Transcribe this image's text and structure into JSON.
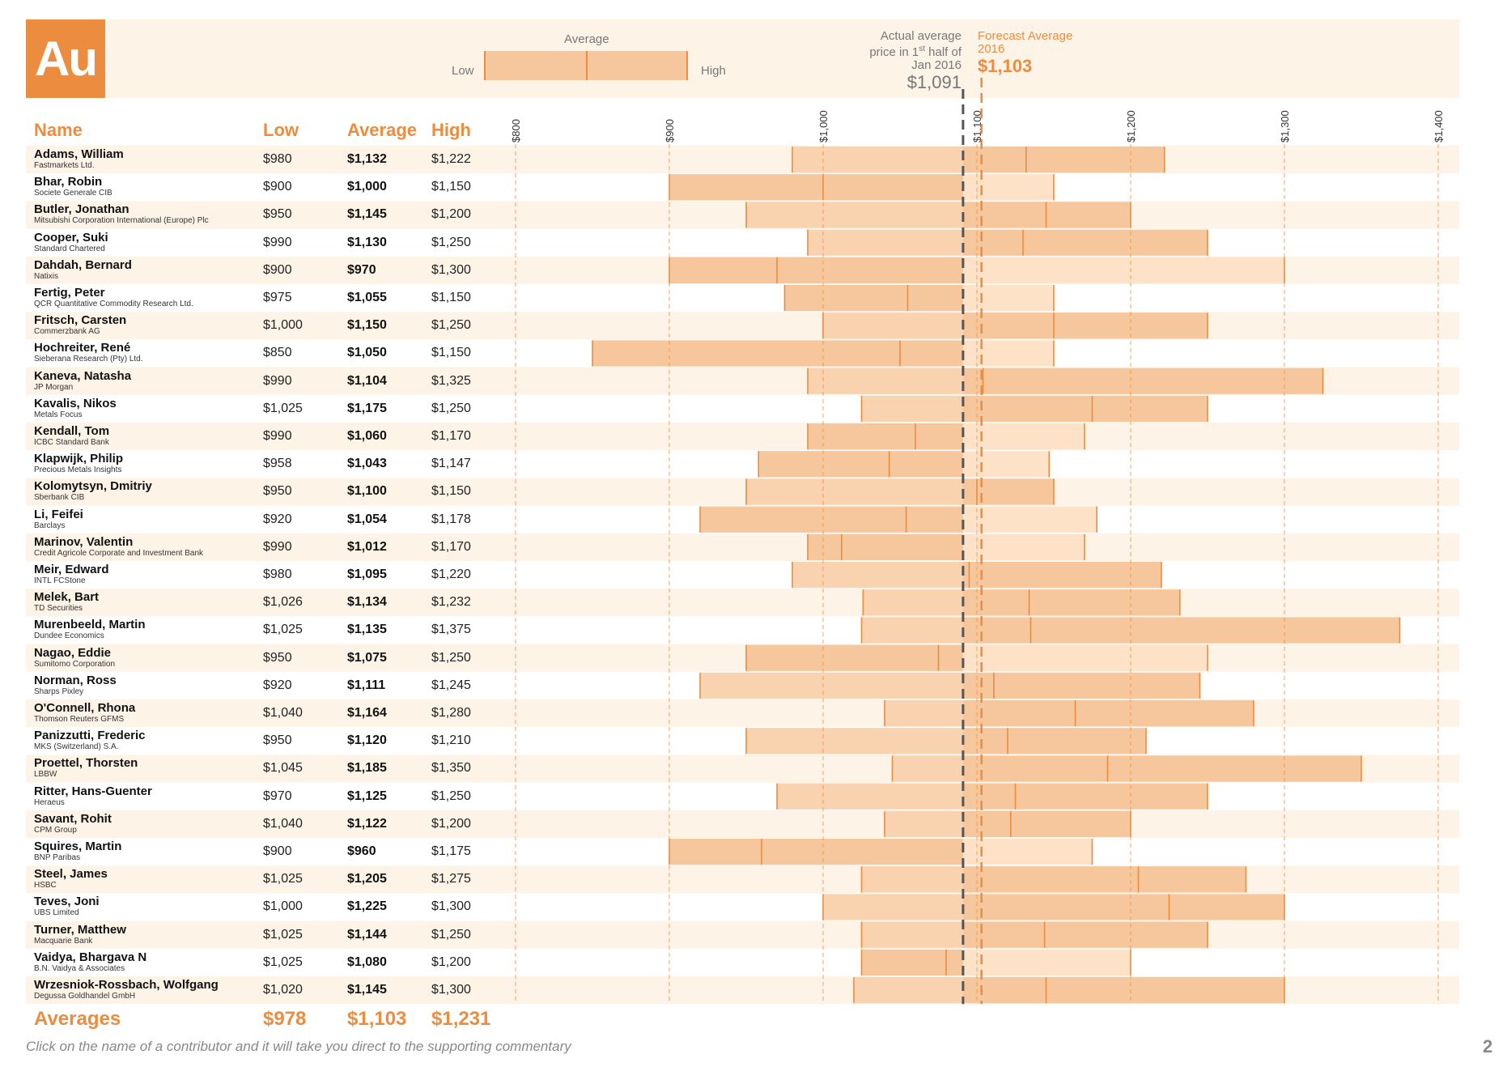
{
  "header": {
    "symbol": "Au",
    "legend": {
      "title": "Average",
      "low": "Low",
      "high": "High"
    },
    "actual": {
      "line1": "Actual average",
      "line2a": "price in 1",
      "line2sup": "st",
      "line2b": " half of",
      "line3": "Jan 2016",
      "value": "$1,091"
    },
    "forecast": {
      "line1": "Forecast Average",
      "line2": "2016",
      "value": "$1,103"
    }
  },
  "columns": {
    "name": "Name",
    "low": "Low",
    "average": "Average",
    "high": "High"
  },
  "chart_data": {
    "type": "range-bar",
    "title": "Au forecast 2016",
    "x_ticks": [
      "$800",
      "$900",
      "$1,000",
      "$1,100",
      "$1,200",
      "$1,300",
      "$1,400"
    ],
    "x_tick_values": [
      800,
      900,
      1000,
      1100,
      1200,
      1300,
      1400
    ],
    "xlim": [
      800,
      1400
    ],
    "actual_average": 1091,
    "forecast_average": 1103,
    "rows": [
      {
        "name": "Adams, William",
        "org": "Fastmarkets Ltd.",
        "low": 980,
        "avg": 1132,
        "high": 1222,
        "low_label": "$980",
        "avg_label": "$1,132",
        "high_label": "$1,222"
      },
      {
        "name": "Bhar, Robin",
        "org": "Societe Generale CIB",
        "low": 900,
        "avg": 1000,
        "high": 1150,
        "low_label": "$900",
        "avg_label": "$1,000",
        "high_label": "$1,150"
      },
      {
        "name": "Butler, Jonathan",
        "org": "Mitsubishi Corporation International (Europe) Plc",
        "low": 950,
        "avg": 1145,
        "high": 1200,
        "low_label": "$950",
        "avg_label": "$1,145",
        "high_label": "$1,200"
      },
      {
        "name": "Cooper, Suki",
        "org": "Standard Chartered",
        "low": 990,
        "avg": 1130,
        "high": 1250,
        "low_label": "$990",
        "avg_label": "$1,130",
        "high_label": "$1,250"
      },
      {
        "name": "Dahdah, Bernard",
        "org": "Natixis",
        "low": 900,
        "avg": 970,
        "high": 1300,
        "low_label": "$900",
        "avg_label": "$970",
        "high_label": "$1,300"
      },
      {
        "name": "Fertig, Peter",
        "org": "QCR Quantitative Commodity Research Ltd.",
        "low": 975,
        "avg": 1055,
        "high": 1150,
        "low_label": "$975",
        "avg_label": "$1,055",
        "high_label": "$1,150"
      },
      {
        "name": "Fritsch, Carsten",
        "org": "Commerzbank AG",
        "low": 1000,
        "avg": 1150,
        "high": 1250,
        "low_label": "$1,000",
        "avg_label": "$1,150",
        "high_label": "$1,250"
      },
      {
        "name": "Hochreiter, René",
        "org": "Sieberana Research (Pty) Ltd.",
        "low": 850,
        "avg": 1050,
        "high": 1150,
        "low_label": "$850",
        "avg_label": "$1,050",
        "high_label": "$1,150"
      },
      {
        "name": "Kaneva, Natasha",
        "org": "JP Morgan",
        "low": 990,
        "avg": 1104,
        "high": 1325,
        "low_label": "$990",
        "avg_label": "$1,104",
        "high_label": "$1,325"
      },
      {
        "name": "Kavalis, Nikos",
        "org": "Metals Focus",
        "low": 1025,
        "avg": 1175,
        "high": 1250,
        "low_label": "$1,025",
        "avg_label": "$1,175",
        "high_label": "$1,250"
      },
      {
        "name": "Kendall, Tom",
        "org": "ICBC Standard Bank",
        "low": 990,
        "avg": 1060,
        "high": 1170,
        "low_label": "$990",
        "avg_label": "$1,060",
        "high_label": "$1,170"
      },
      {
        "name": "Klapwijk, Philip",
        "org": "Precious Metals Insights",
        "low": 958,
        "avg": 1043,
        "high": 1147,
        "low_label": "$958",
        "avg_label": "$1,043",
        "high_label": "$1,147"
      },
      {
        "name": "Kolomytsyn, Dmitriy",
        "org": "Sberbank CIB",
        "low": 950,
        "avg": 1100,
        "high": 1150,
        "low_label": "$950",
        "avg_label": "$1,100",
        "high_label": "$1,150"
      },
      {
        "name": "Li, Feifei",
        "org": "Barclays",
        "low": 920,
        "avg": 1054,
        "high": 1178,
        "low_label": "$920",
        "avg_label": "$1,054",
        "high_label": "$1,178"
      },
      {
        "name": "Marinov, Valentin",
        "org": "Credit Agricole Corporate and Investment Bank",
        "low": 990,
        "avg": 1012,
        "high": 1170,
        "low_label": "$990",
        "avg_label": "$1,012",
        "high_label": "$1,170"
      },
      {
        "name": "Meir, Edward",
        "org": "INTL FCStone",
        "low": 980,
        "avg": 1095,
        "high": 1220,
        "low_label": "$980",
        "avg_label": "$1,095",
        "high_label": "$1,220"
      },
      {
        "name": "Melek, Bart",
        "org": "TD Securities",
        "low": 1026,
        "avg": 1134,
        "high": 1232,
        "low_label": "$1,026",
        "avg_label": "$1,134",
        "high_label": "$1,232"
      },
      {
        "name": "Murenbeeld, Martin",
        "org": "Dundee Economics",
        "low": 1025,
        "avg": 1135,
        "high": 1375,
        "low_label": "$1,025",
        "avg_label": "$1,135",
        "high_label": "$1,375"
      },
      {
        "name": "Nagao, Eddie",
        "org": "Sumitomo Corporation",
        "low": 950,
        "avg": 1075,
        "high": 1250,
        "low_label": "$950",
        "avg_label": "$1,075",
        "high_label": "$1,250"
      },
      {
        "name": "Norman, Ross",
        "org": "Sharps Pixley",
        "low": 920,
        "avg": 1111,
        "high": 1245,
        "low_label": "$920",
        "avg_label": "$1,111",
        "high_label": "$1,245"
      },
      {
        "name": "O'Connell, Rhona",
        "org": "Thomson Reuters GFMS",
        "low": 1040,
        "avg": 1164,
        "high": 1280,
        "low_label": "$1,040",
        "avg_label": "$1,164",
        "high_label": "$1,280"
      },
      {
        "name": "Panizzutti, Frederic",
        "org": "MKS (Switzerland) S.A.",
        "low": 950,
        "avg": 1120,
        "high": 1210,
        "low_label": "$950",
        "avg_label": "$1,120",
        "high_label": "$1,210"
      },
      {
        "name": "Proettel, Thorsten",
        "org": "LBBW",
        "low": 1045,
        "avg": 1185,
        "high": 1350,
        "low_label": "$1,045",
        "avg_label": "$1,185",
        "high_label": "$1,350"
      },
      {
        "name": "Ritter, Hans-Guenter",
        "org": "Heraeus",
        "low": 970,
        "avg": 1125,
        "high": 1250,
        "low_label": "$970",
        "avg_label": "$1,125",
        "high_label": "$1,250"
      },
      {
        "name": "Savant, Rohit",
        "org": "CPM Group",
        "low": 1040,
        "avg": 1122,
        "high": 1200,
        "low_label": "$1,040",
        "avg_label": "$1,122",
        "high_label": "$1,200"
      },
      {
        "name": "Squires, Martin",
        "org": "BNP Paribas",
        "low": 900,
        "avg": 960,
        "high": 1175,
        "low_label": "$900",
        "avg_label": "$960",
        "high_label": "$1,175"
      },
      {
        "name": "Steel, James",
        "org": "HSBC",
        "low": 1025,
        "avg": 1205,
        "high": 1275,
        "low_label": "$1,025",
        "avg_label": "$1,205",
        "high_label": "$1,275"
      },
      {
        "name": "Teves, Joni",
        "org": "UBS Limited",
        "low": 1000,
        "avg": 1225,
        "high": 1300,
        "low_label": "$1,000",
        "avg_label": "$1,225",
        "high_label": "$1,300"
      },
      {
        "name": "Turner, Matthew",
        "org": "Macquarie Bank",
        "low": 1025,
        "avg": 1144,
        "high": 1250,
        "low_label": "$1,025",
        "avg_label": "$1,144",
        "high_label": "$1,250"
      },
      {
        "name": "Vaidya, Bhargava N",
        "org": "B.N. Vaidya & Associates",
        "low": 1025,
        "avg": 1080,
        "high": 1200,
        "low_label": "$1,025",
        "avg_label": "$1,080",
        "high_label": "$1,200"
      },
      {
        "name": "Wrzesniok-Rossbach, Wolfgang",
        "org": "Degussa Goldhandel GmbH",
        "low": 1020,
        "avg": 1145,
        "high": 1300,
        "low_label": "$1,020",
        "avg_label": "$1,145",
        "high_label": "$1,300"
      }
    ]
  },
  "averages": {
    "label": "Averages",
    "low": "$978",
    "average": "$1,103",
    "high": "$1,231"
  },
  "footer": "Click on the name of a contributor and it will take you direct to the supporting commentary",
  "page_number": "2",
  "colors": {
    "accent": "#ec8c3e",
    "bar_light": "#fde2c7",
    "bar_dark": "#f6c79c",
    "row_shade": "#fdf3e7",
    "actual_line": "#555555"
  }
}
